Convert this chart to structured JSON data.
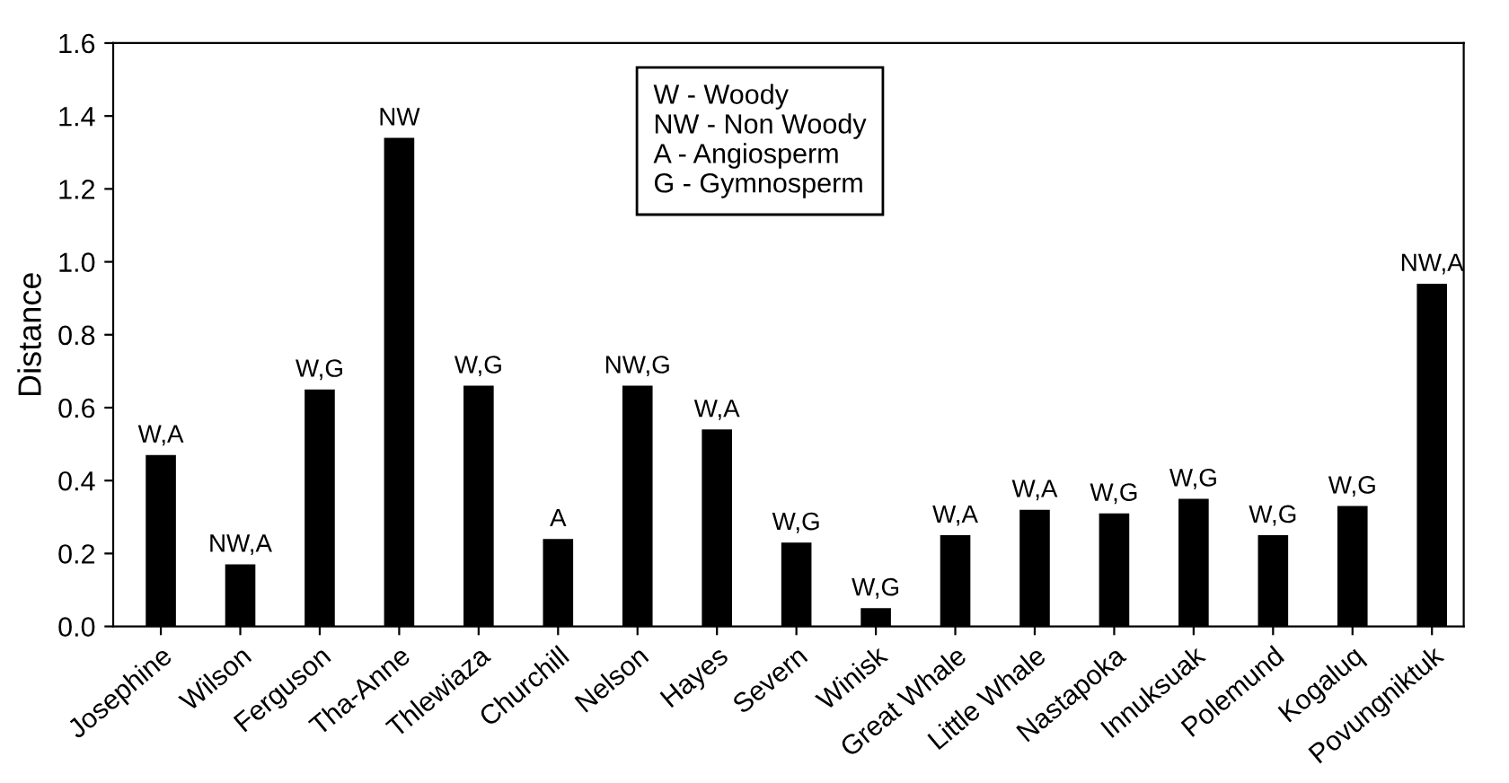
{
  "chart_data": {
    "type": "bar",
    "ylabel": "Distance",
    "categories": [
      "Josephine",
      "Wilson",
      "Ferguson",
      "Tha-Anne",
      "Thlewiaza",
      "Churchill",
      "Nelson",
      "Hayes",
      "Severn",
      "Winisk",
      "Great Whale",
      "Little Whale",
      "Nastapoka",
      "Innuksuak",
      "Polemund",
      "Kogaluq",
      "Povungniktuk"
    ],
    "values": [
      0.47,
      0.17,
      0.65,
      1.34,
      0.66,
      0.24,
      0.66,
      0.54,
      0.23,
      0.05,
      0.25,
      0.32,
      0.31,
      0.35,
      0.25,
      0.33,
      0.94
    ],
    "value_labels": [
      "W,A",
      "NW,A",
      "W,G",
      "NW",
      "W,G",
      "A",
      "NW,G",
      "W,A",
      "W,G",
      "W,G",
      "W,A",
      "W,A",
      "W,G",
      "W,G",
      "W,G",
      "W,G",
      "NW,A"
    ],
    "color": "#000000",
    "ylim": [
      0,
      1.6
    ],
    "yticks": [
      "0.0",
      0.2,
      0.4,
      0.6,
      0.8,
      "1.0",
      1.2,
      1.4,
      1.6
    ],
    "annotations": [
      "W - Woody\nNW - Non Woody\nA - Angiosperm\nG - Gymnosperm"
    ],
    "grid": false
  }
}
